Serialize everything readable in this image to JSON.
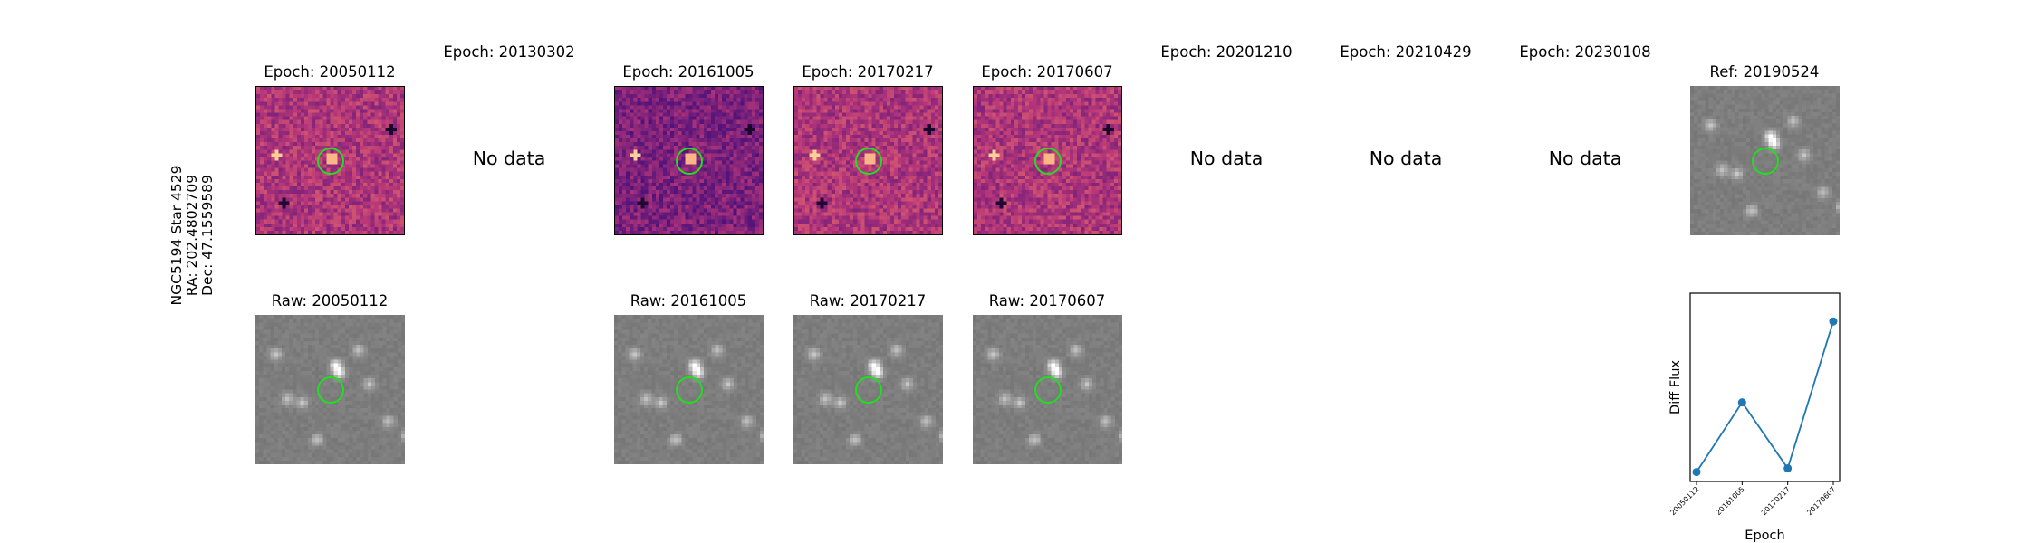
{
  "star_label": {
    "line1": "NGC5194 Star 4529",
    "line2": "RA: 202.4802709",
    "line3": "Dec: 47.1559589"
  },
  "epoch_titles": [
    "Epoch: 20050112",
    "Epoch: 20130302",
    "Epoch: 20161005",
    "Epoch: 20170217",
    "Epoch: 20170607",
    "Epoch: 20201210",
    "Epoch: 20210429",
    "Epoch: 20230108",
    "Ref: 20190524"
  ],
  "no_data_label": "No data",
  "raw_titles": [
    "Raw: 20050112",
    "Raw: 20161005",
    "Raw: 20170217",
    "Raw: 20170607"
  ],
  "colors": {
    "diff_cmap": "magma",
    "aperture_circle": "#22dd22",
    "series_line": "#1f77b4"
  },
  "chart_data": {
    "type": "line",
    "x": [
      "20050112",
      "20161005",
      "20170217",
      "20170607"
    ],
    "series": [
      {
        "values": [
          0.05,
          0.42,
          0.07,
          0.85
        ]
      }
    ],
    "xlabel": "Epoch",
    "ylabel": "Diff Flux",
    "ylim": [
      0,
      1
    ],
    "yticks_shown": false,
    "grid": false
  }
}
